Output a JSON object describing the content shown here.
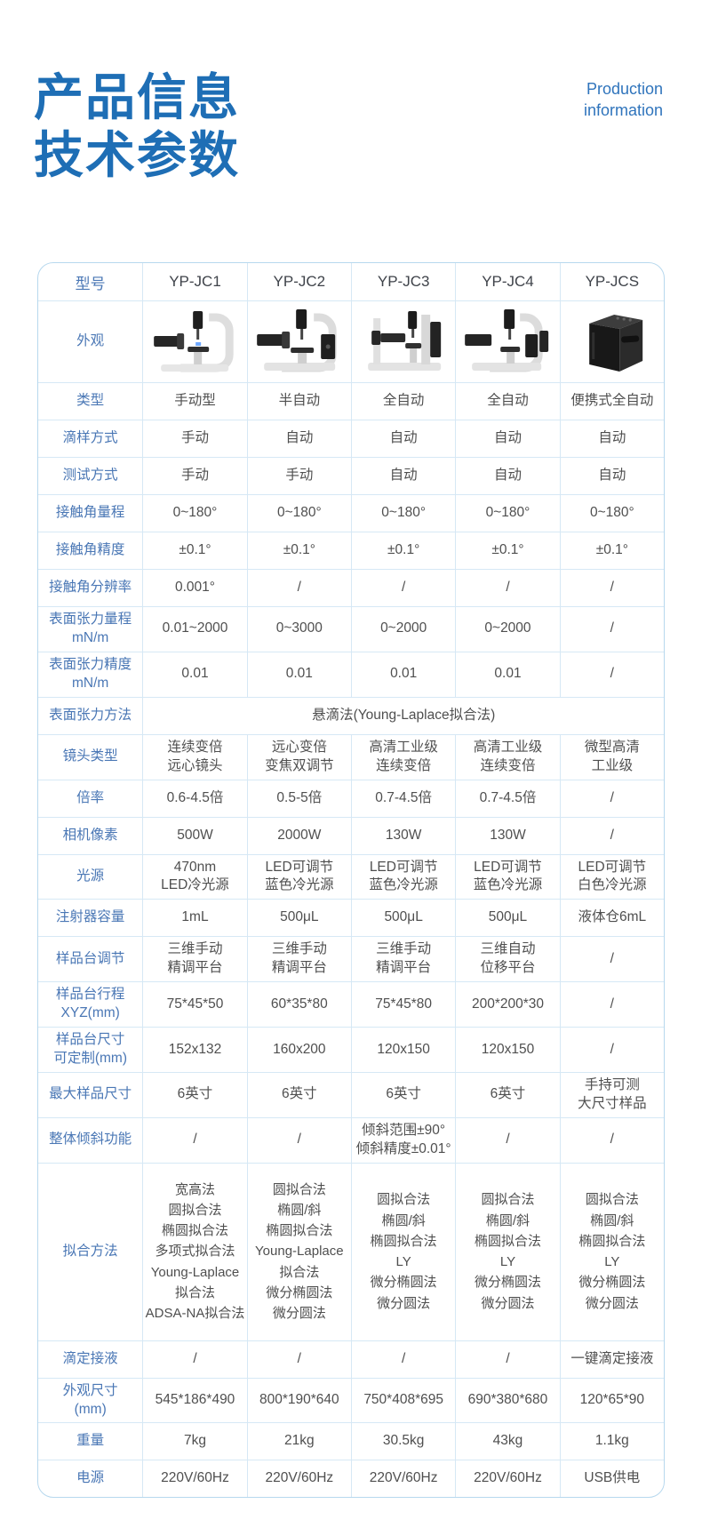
{
  "header": {
    "title_line1": "产品信息",
    "title_line2": "技术参数",
    "subtitle_line1": "Production",
    "subtitle_line2": "information"
  },
  "colors": {
    "title_blue": "#1e6eb5",
    "subtitle_blue": "#2f74bc",
    "label_blue": "#4a77b5",
    "value_gray": "#4f4f4f",
    "border_outer": "#b7d8ee",
    "border_inner": "#d6e8f5",
    "product_dark": "#1d1d1d"
  },
  "table": {
    "columns": [
      "型号",
      "YP-JC1",
      "YP-JC2",
      "YP-JC3",
      "YP-JC4",
      "YP-JCS"
    ],
    "appearance": {
      "label": "外观",
      "images": [
        "instrument-c-frame-yp-jc1",
        "instrument-c-frame-yp-jc2",
        "instrument-gantry-yp-jc3",
        "instrument-c-frame-yp-jc4",
        "portable-box-yp-jcs"
      ]
    },
    "rows": [
      {
        "label": "类型",
        "values": [
          "手动型",
          "半自动",
          "全自动",
          "全自动",
          "便携式全自动"
        ]
      },
      {
        "label": "滴样方式",
        "values": [
          "手动",
          "自动",
          "自动",
          "自动",
          "自动"
        ]
      },
      {
        "label": "测试方式",
        "values": [
          "手动",
          "手动",
          "自动",
          "自动",
          "自动"
        ]
      },
      {
        "label": "接触角量程",
        "values": [
          "0~180°",
          "0~180°",
          "0~180°",
          "0~180°",
          "0~180°"
        ]
      },
      {
        "label": "接触角精度",
        "values": [
          "±0.1°",
          "±0.1°",
          "±0.1°",
          "±0.1°",
          "±0.1°"
        ]
      },
      {
        "label": "接触角分辨率",
        "values": [
          "0.001°",
          "/",
          "/",
          "/",
          "/"
        ]
      },
      {
        "label": "表面张力量程\nmN/m",
        "values": [
          "0.01~2000",
          "0~3000",
          "0~2000",
          "0~2000",
          "/"
        ]
      },
      {
        "label": "表面张力精度\nmN/m",
        "values": [
          "0.01",
          "0.01",
          "0.01",
          "0.01",
          "/"
        ]
      },
      {
        "label": "表面张力方法",
        "span": "悬滴法(Young-Laplace拟合法)"
      },
      {
        "label": "镜头类型",
        "values": [
          "连续变倍\n远心镜头",
          "远心变倍\n变焦双调节",
          "高清工业级\n连续变倍",
          "高清工业级\n连续变倍",
          "微型高清\n工业级"
        ]
      },
      {
        "label": "倍率",
        "values": [
          "0.6-4.5倍",
          "0.5-5倍",
          "0.7-4.5倍",
          "0.7-4.5倍",
          "/"
        ]
      },
      {
        "label": "相机像素",
        "values": [
          "500W",
          "2000W",
          "130W",
          "130W",
          "/"
        ]
      },
      {
        "label": "光源",
        "values": [
          "470nm\nLED冷光源",
          "LED可调节\n蓝色冷光源",
          "LED可调节\n蓝色冷光源",
          "LED可调节\n蓝色冷光源",
          "LED可调节\n白色冷光源"
        ]
      },
      {
        "label": "注射器容量",
        "values": [
          "1mL",
          "500μL",
          "500μL",
          "500μL",
          "液体仓6mL"
        ]
      },
      {
        "label": "样品台调节",
        "values": [
          "三维手动\n精调平台",
          "三维手动\n精调平台",
          "三维手动\n精调平台",
          "三维自动\n位移平台",
          "/"
        ]
      },
      {
        "label": "样品台行程\nXYZ(mm)",
        "values": [
          "75*45*50",
          "60*35*80",
          "75*45*80",
          "200*200*30",
          "/"
        ]
      },
      {
        "label": "样品台尺寸\n可定制(mm)",
        "values": [
          "152x132",
          "160x200",
          "120x150",
          "120x150",
          "/"
        ]
      },
      {
        "label": "最大样品尺寸",
        "values": [
          "6英寸",
          "6英寸",
          "6英寸",
          "6英寸",
          "手持可测\n大尺寸样品"
        ]
      },
      {
        "label": "整体倾斜功能",
        "values": [
          "/",
          "/",
          "倾斜范围±90°\n倾斜精度±0.01°",
          "/",
          "/"
        ]
      },
      {
        "label": "拟合方法",
        "values": [
          "宽高法\n圆拟合法\n椭圆拟合法\n多项式拟合法\nYoung-Laplace\n拟合法\nADSA-NA拟合法",
          "圆拟合法\n椭圆/斜\n椭圆拟合法\nYoung-Laplace\n拟合法\n微分椭圆法\n微分圆法",
          "圆拟合法\n椭圆/斜\n椭圆拟合法\nLY\n微分椭圆法\n微分圆法",
          "圆拟合法\n椭圆/斜\n椭圆拟合法\nLY\n微分椭圆法\n微分圆法",
          "圆拟合法\n椭圆/斜\n椭圆拟合法\nLY\n微分椭圆法\n微分圆法"
        ]
      },
      {
        "label": "滴定接液",
        "values": [
          "/",
          "/",
          "/",
          "/",
          "一键滴定接液"
        ]
      },
      {
        "label": "外观尺寸\n(mm)",
        "values": [
          "545*186*490",
          "800*190*640",
          "750*408*695",
          "690*380*680",
          "120*65*90"
        ]
      },
      {
        "label": "重量",
        "values": [
          "7kg",
          "21kg",
          "30.5kg",
          "43kg",
          "1.1kg"
        ]
      },
      {
        "label": "电源",
        "values": [
          "220V/60Hz",
          "220V/60Hz",
          "220V/60Hz",
          "220V/60Hz",
          "USB供电"
        ]
      }
    ]
  }
}
